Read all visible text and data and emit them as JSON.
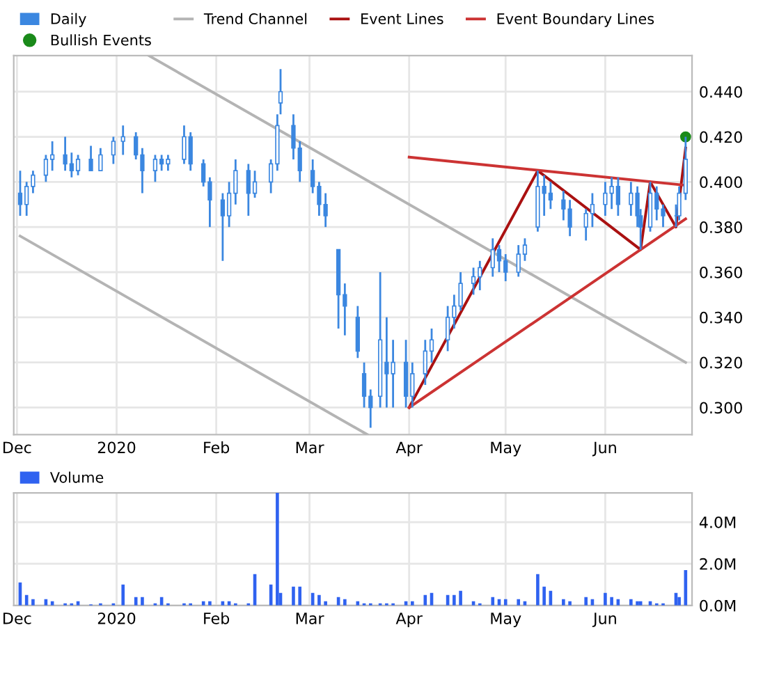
{
  "chart_data": [
    {
      "type": "candlestick",
      "x": [
        "2019-12-02",
        "2019-12-04",
        "2019-12-06",
        "2019-12-10",
        "2019-12-12",
        "2019-12-16",
        "2019-12-18",
        "2019-12-20",
        "2019-12-24",
        "2019-12-27",
        "2019-12-31",
        "2020-01-03",
        "2020-01-07",
        "2020-01-09",
        "2020-01-13",
        "2020-01-15",
        "2020-01-17",
        "2020-01-22",
        "2020-01-24",
        "2020-01-28",
        "2020-01-30",
        "2020-02-03",
        "2020-02-05",
        "2020-02-07",
        "2020-02-11",
        "2020-02-13",
        "2020-02-18",
        "2020-02-20",
        "2020-02-21",
        "2020-02-25",
        "2020-02-27",
        "2020-03-02",
        "2020-03-04",
        "2020-03-06",
        "2020-03-10",
        "2020-03-12",
        "2020-03-16",
        "2020-03-18",
        "2020-03-20",
        "2020-03-23",
        "2020-03-25",
        "2020-03-27",
        "2020-03-31",
        "2020-04-02",
        "2020-04-06",
        "2020-04-08",
        "2020-04-13",
        "2020-04-15",
        "2020-04-17",
        "2020-04-21",
        "2020-04-23",
        "2020-04-27",
        "2020-04-29",
        "2020-05-01",
        "2020-05-05",
        "2020-05-07",
        "2020-05-11",
        "2020-05-13",
        "2020-05-15",
        "2020-05-19",
        "2020-05-21",
        "2020-05-26",
        "2020-05-28",
        "2020-06-01",
        "2020-06-03",
        "2020-06-05",
        "2020-06-09",
        "2020-06-11",
        "2020-06-12",
        "2020-06-15",
        "2020-06-17",
        "2020-06-19",
        "2020-06-23",
        "2020-06-24",
        "2020-06-26"
      ],
      "series": [
        {
          "type": "candlestick",
          "name": "Daily",
          "color": "#3b87e0",
          "ohlc": [
            [
              0.395,
              0.405,
              0.385,
              0.39
            ],
            [
              0.39,
              0.4,
              0.385,
              0.398
            ],
            [
              0.398,
              0.405,
              0.395,
              0.403
            ],
            [
              0.403,
              0.412,
              0.4,
              0.41
            ],
            [
              0.41,
              0.418,
              0.405,
              0.412
            ],
            [
              0.412,
              0.42,
              0.405,
              0.408
            ],
            [
              0.408,
              0.413,
              0.402,
              0.405
            ],
            [
              0.405,
              0.412,
              0.403,
              0.41
            ],
            [
              0.41,
              0.416,
              0.405,
              0.405
            ],
            [
              0.405,
              0.415,
              0.405,
              0.412
            ],
            [
              0.412,
              0.42,
              0.408,
              0.418
            ],
            [
              0.418,
              0.425,
              0.412,
              0.42
            ],
            [
              0.42,
              0.422,
              0.41,
              0.412
            ],
            [
              0.412,
              0.415,
              0.395,
              0.405
            ],
            [
              0.405,
              0.412,
              0.4,
              0.41
            ],
            [
              0.41,
              0.412,
              0.405,
              0.408
            ],
            [
              0.408,
              0.412,
              0.405,
              0.41
            ],
            [
              0.41,
              0.425,
              0.408,
              0.42
            ],
            [
              0.42,
              0.422,
              0.405,
              0.408
            ],
            [
              0.408,
              0.41,
              0.398,
              0.4
            ],
            [
              0.4,
              0.402,
              0.38,
              0.392
            ],
            [
              0.392,
              0.395,
              0.365,
              0.385
            ],
            [
              0.385,
              0.4,
              0.38,
              0.395
            ],
            [
              0.395,
              0.41,
              0.39,
              0.405
            ],
            [
              0.405,
              0.408,
              0.385,
              0.395
            ],
            [
              0.395,
              0.405,
              0.393,
              0.4
            ],
            [
              0.4,
              0.41,
              0.395,
              0.408
            ],
            [
              0.408,
              0.43,
              0.405,
              0.425
            ],
            [
              0.435,
              0.45,
              0.43,
              0.44
            ],
            [
              0.425,
              0.43,
              0.41,
              0.415
            ],
            [
              0.415,
              0.418,
              0.4,
              0.405
            ],
            [
              0.405,
              0.41,
              0.395,
              0.398
            ],
            [
              0.398,
              0.4,
              0.385,
              0.39
            ],
            [
              0.39,
              0.395,
              0.38,
              0.385
            ],
            [
              0.37,
              0.37,
              0.335,
              0.35
            ],
            [
              0.35,
              0.355,
              0.332,
              0.345
            ],
            [
              0.34,
              0.345,
              0.322,
              0.325
            ],
            [
              0.315,
              0.32,
              0.3,
              0.305
            ],
            [
              0.305,
              0.308,
              0.291,
              0.3
            ],
            [
              0.305,
              0.36,
              0.3,
              0.33
            ],
            [
              0.32,
              0.34,
              0.3,
              0.315
            ],
            [
              0.315,
              0.33,
              0.3,
              0.32
            ],
            [
              0.32,
              0.33,
              0.3,
              0.305
            ],
            [
              0.305,
              0.32,
              0.3,
              0.315
            ],
            [
              0.315,
              0.33,
              0.31,
              0.325
            ],
            [
              0.325,
              0.335,
              0.32,
              0.33
            ],
            [
              0.33,
              0.345,
              0.325,
              0.34
            ],
            [
              0.34,
              0.35,
              0.335,
              0.345
            ],
            [
              0.345,
              0.36,
              0.343,
              0.355
            ],
            [
              0.355,
              0.362,
              0.35,
              0.358
            ],
            [
              0.358,
              0.365,
              0.352,
              0.362
            ],
            [
              0.362,
              0.375,
              0.358,
              0.37
            ],
            [
              0.37,
              0.372,
              0.36,
              0.365
            ],
            [
              0.365,
              0.368,
              0.356,
              0.36
            ],
            [
              0.36,
              0.372,
              0.358,
              0.368
            ],
            [
              0.368,
              0.375,
              0.365,
              0.372
            ],
            [
              0.38,
              0.405,
              0.378,
              0.398
            ],
            [
              0.398,
              0.403,
              0.385,
              0.395
            ],
            [
              0.395,
              0.4,
              0.388,
              0.392
            ],
            [
              0.392,
              0.396,
              0.383,
              0.388
            ],
            [
              0.388,
              0.392,
              0.376,
              0.38
            ],
            [
              0.38,
              0.388,
              0.374,
              0.386
            ],
            [
              0.386,
              0.395,
              0.38,
              0.39
            ],
            [
              0.39,
              0.4,
              0.385,
              0.395
            ],
            [
              0.395,
              0.402,
              0.388,
              0.398
            ],
            [
              0.398,
              0.402,
              0.385,
              0.39
            ],
            [
              0.39,
              0.4,
              0.385,
              0.395
            ],
            [
              0.395,
              0.398,
              0.38,
              0.385
            ],
            [
              0.385,
              0.388,
              0.37,
              0.38
            ],
            [
              0.38,
              0.4,
              0.378,
              0.395
            ],
            [
              0.395,
              0.398,
              0.383,
              0.388
            ],
            [
              0.388,
              0.39,
              0.38,
              0.385
            ],
            [
              0.385,
              0.39,
              0.38,
              0.385
            ],
            [
              0.385,
              0.398,
              0.383,
              0.395
            ],
            [
              0.395,
              0.42,
              0.392,
              0.41
            ]
          ]
        },
        {
          "type": "scatter",
          "name": "Bullish Events",
          "color": "#1a8a1a",
          "marker": "circle",
          "x": [
            "2020-06-26"
          ],
          "values": [
            0.42
          ]
        },
        {
          "type": "line",
          "name": "Trend Channel",
          "color": "#b4b4b4",
          "x": [
            "2020-01-11",
            "2020-06-26"
          ],
          "values": [
            0.456,
            0.32
          ]
        },
        {
          "type": "line",
          "color": "#b4b4b4",
          "x": [
            "2019-12-02",
            "2020-03-19"
          ],
          "values": [
            0.376,
            0.288
          ]
        },
        {
          "type": "line",
          "name": "Event Lines",
          "color": "#aa1111",
          "x": [
            "2020-04-01",
            "2020-05-11",
            "2020-06-12",
            "2020-06-15",
            "2020-06-23",
            "2020-06-26"
          ],
          "values": [
            0.3,
            0.405,
            0.37,
            0.4,
            0.38,
            0.415
          ]
        },
        {
          "type": "line",
          "name": "Event Boundary Lines",
          "color": "#cc3333",
          "x": [
            "2020-04-01",
            "2020-06-26"
          ],
          "values": [
            0.411,
            0.3985
          ]
        },
        {
          "type": "line",
          "color": "#cc3333",
          "x": [
            "2020-04-01",
            "2020-06-26"
          ],
          "values": [
            0.3,
            0.3836
          ]
        }
      ],
      "xlim": [
        "2019-11-30",
        "2020-06-28"
      ],
      "xticks": [
        {
          "value": "2019-12-01",
          "label": "Dec"
        },
        {
          "value": "2020-01-01",
          "label": "2020"
        },
        {
          "value": "2020-02-01",
          "label": "Feb"
        },
        {
          "value": "2020-03-01",
          "label": "Mar"
        },
        {
          "value": "2020-04-01",
          "label": "Apr"
        },
        {
          "value": "2020-05-01",
          "label": "May"
        },
        {
          "value": "2020-06-01",
          "label": "Jun"
        }
      ],
      "ylim": [
        0.288,
        0.456
      ],
      "yticks": [
        {
          "value": 0.3,
          "label": "0.300"
        },
        {
          "value": 0.32,
          "label": "0.320"
        },
        {
          "value": 0.34,
          "label": "0.340"
        },
        {
          "value": 0.36,
          "label": "0.360"
        },
        {
          "value": 0.38,
          "label": "0.380"
        },
        {
          "value": 0.4,
          "label": "0.400"
        },
        {
          "value": 0.42,
          "label": "0.420"
        },
        {
          "value": 0.44,
          "label": "0.440"
        }
      ],
      "grid": true,
      "legend": "top"
    },
    {
      "type": "bar",
      "series": [
        {
          "name": "Volume",
          "color": "#2f62f0",
          "values": [
            1.1,
            0.5,
            0.3,
            0.3,
            0.2,
            0.1,
            0.1,
            0.2,
            0.05,
            0.1,
            0.1,
            1.0,
            0.4,
            0.4,
            0.1,
            0.4,
            0.1,
            0.1,
            0.1,
            0.2,
            0.2,
            0.2,
            0.2,
            0.1,
            0.1,
            1.5,
            1.0,
            5.4,
            0.6,
            0.9,
            0.9,
            0.6,
            0.5,
            0.2,
            0.4,
            0.3,
            0.2,
            0.1,
            0.1,
            0.1,
            0.1,
            0.1,
            0.2,
            0.2,
            0.5,
            0.6,
            0.5,
            0.5,
            0.7,
            0.2,
            0.1,
            0.4,
            0.3,
            0.3,
            0.3,
            0.2,
            1.5,
            0.9,
            0.7,
            0.3,
            0.2,
            0.4,
            0.3,
            0.6,
            0.4,
            0.3,
            0.3,
            0.2,
            0.2,
            0.2,
            0.1,
            0.1,
            0.6,
            0.4,
            1.7
          ]
        }
      ],
      "x": [
        "2019-12-02",
        "2019-12-04",
        "2019-12-06",
        "2019-12-10",
        "2019-12-12",
        "2019-12-16",
        "2019-12-18",
        "2019-12-20",
        "2019-12-24",
        "2019-12-27",
        "2019-12-31",
        "2020-01-03",
        "2020-01-07",
        "2020-01-09",
        "2020-01-13",
        "2020-01-15",
        "2020-01-17",
        "2020-01-22",
        "2020-01-24",
        "2020-01-28",
        "2020-01-30",
        "2020-02-03",
        "2020-02-05",
        "2020-02-07",
        "2020-02-11",
        "2020-02-13",
        "2020-02-18",
        "2020-02-20",
        "2020-02-21",
        "2020-02-25",
        "2020-02-27",
        "2020-03-02",
        "2020-03-04",
        "2020-03-06",
        "2020-03-10",
        "2020-03-12",
        "2020-03-16",
        "2020-03-18",
        "2020-03-20",
        "2020-03-23",
        "2020-03-25",
        "2020-03-27",
        "2020-03-31",
        "2020-04-02",
        "2020-04-06",
        "2020-04-08",
        "2020-04-13",
        "2020-04-15",
        "2020-04-17",
        "2020-04-21",
        "2020-04-23",
        "2020-04-27",
        "2020-04-29",
        "2020-05-01",
        "2020-05-05",
        "2020-05-07",
        "2020-05-11",
        "2020-05-13",
        "2020-05-15",
        "2020-05-19",
        "2020-05-21",
        "2020-05-26",
        "2020-05-28",
        "2020-06-01",
        "2020-06-03",
        "2020-06-05",
        "2020-06-09",
        "2020-06-11",
        "2020-06-12",
        "2020-06-15",
        "2020-06-17",
        "2020-06-19",
        "2020-06-23",
        "2020-06-24",
        "2020-06-26"
      ],
      "xlim": [
        "2019-11-30",
        "2020-06-28"
      ],
      "xticks": [
        {
          "value": "2019-12-01",
          "label": "Dec"
        },
        {
          "value": "2020-01-01",
          "label": "2020"
        },
        {
          "value": "2020-02-01",
          "label": "Feb"
        },
        {
          "value": "2020-03-01",
          "label": "Mar"
        },
        {
          "value": "2020-04-01",
          "label": "Apr"
        },
        {
          "value": "2020-05-01",
          "label": "May"
        },
        {
          "value": "2020-06-01",
          "label": "Jun"
        }
      ],
      "ylim": [
        0,
        5.4
      ],
      "yticks": [
        {
          "value": 0,
          "label": "0.0M"
        },
        {
          "value": 2,
          "label": "2.0M"
        },
        {
          "value": 4,
          "label": "4.0M"
        }
      ],
      "grid": true,
      "legend": "top left"
    }
  ]
}
